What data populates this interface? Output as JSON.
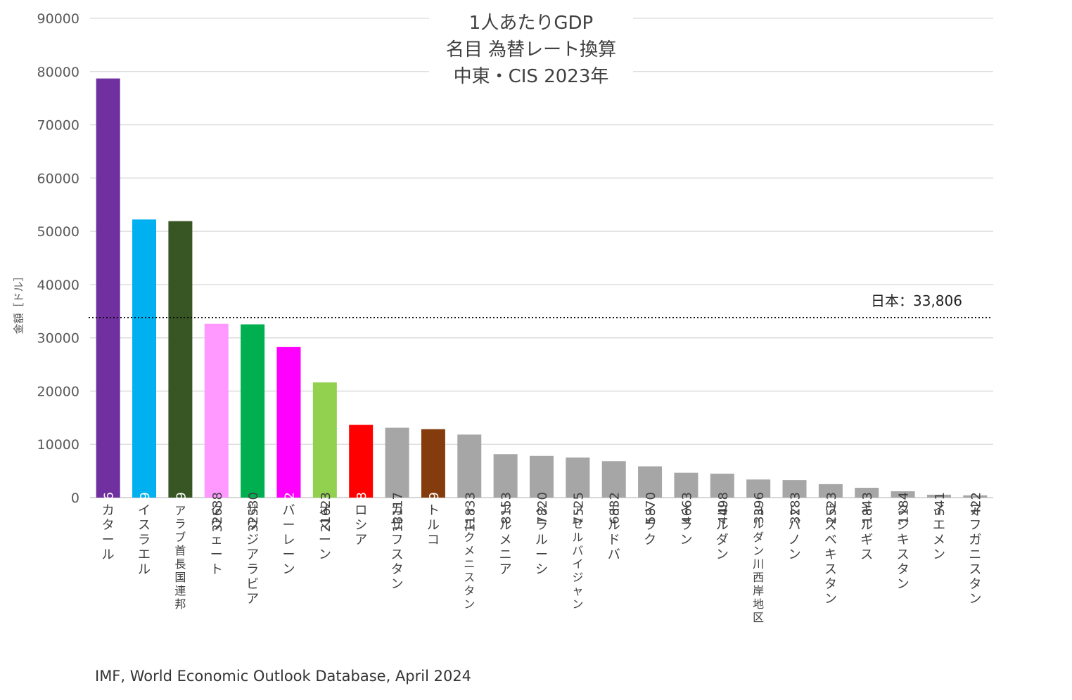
{
  "chart_data": {
    "type": "bar",
    "title_lines": [
      "1人あたりGDP",
      "名目 為替レート換算",
      "中東・CIS 2023年"
    ],
    "ylabel": "金額［ドル］",
    "xlabel": "",
    "ylim": [
      0,
      90000
    ],
    "yticks": [
      "0",
      "10000",
      "20000",
      "30000",
      "40000",
      "50000",
      "60000",
      "70000",
      "80000",
      "90000"
    ],
    "grid": true,
    "categories": [
      "カタール",
      "イスラエル",
      "アラブ首長国連邦",
      "クウェート",
      "サウジアラビア",
      "バーレーン",
      "オマーン",
      "ロシア",
      "カザフスタン",
      "トルコ",
      "トルクメニスタン",
      "アルメニア",
      "ベラルーシ",
      "アゼルバイジャン",
      "モルドバ",
      "イラク",
      "イラン",
      "ヨルダン",
      "ヨルダン川西岸地区",
      "レバノン",
      "ウズベキスタン",
      "キルギス",
      "タジキスタン",
      "イエメン",
      "アフガニスタン"
    ],
    "values": [
      78696,
      52219,
      51909,
      32638,
      32530,
      28262,
      21623,
      13648,
      13117,
      12849,
      11833,
      8153,
      7820,
      7525,
      6832,
      5870,
      4663,
      4498,
      3396,
      3283,
      2523,
      1843,
      1184,
      541,
      422
    ],
    "colors": [
      "#7030a0",
      "#00b0f0",
      "#375623",
      "#ff99ff",
      "#00b050",
      "#ff00ff",
      "#92d050",
      "#ff0000",
      "#a6a6a6",
      "#843c0c",
      "#a6a6a6",
      "#a6a6a6",
      "#a6a6a6",
      "#a6a6a6",
      "#a6a6a6",
      "#a6a6a6",
      "#a6a6a6",
      "#a6a6a6",
      "#a6a6a6",
      "#a6a6a6",
      "#a6a6a6",
      "#a6a6a6",
      "#a6a6a6",
      "#a6a6a6",
      "#a6a6a6"
    ],
    "label_colors": [
      "#ffffff",
      "#ffffff",
      "#ffffff",
      "#404040",
      "#404040",
      "#ffffff",
      "#404040",
      "#ffffff",
      "#404040",
      "#ffffff",
      "#404040",
      "#404040",
      "#404040",
      "#404040",
      "#404040",
      "#404040",
      "#404040",
      "#404040",
      "#404040",
      "#404040",
      "#404040",
      "#404040",
      "#404040",
      "#404040",
      "#404040"
    ],
    "reference_line": {
      "label": "日本：33,806",
      "value": 33806,
      "style": "dotted"
    },
    "source": "IMF, World Economic Outlook Database, April 2024"
  }
}
